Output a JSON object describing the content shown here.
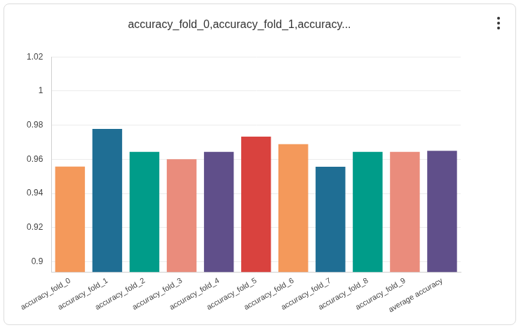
{
  "chart_data": {
    "type": "bar",
    "title": "accuracy_fold_0,accuracy_fold_1,accuracy...",
    "categories": [
      "accuracy_fold_0",
      "accuracy_fold_1",
      "accuracy_fold_2",
      "accuracy_fold_3",
      "accuracy_fold_4",
      "accuracy_fold_5",
      "accuracy_fold_6",
      "accuracy_fold_7",
      "accuracy_fold_8",
      "accuracy_fold_9",
      "average accuracy"
    ],
    "values": [
      0.9557,
      0.9778,
      0.9644,
      0.96,
      0.9644,
      0.9733,
      0.9689,
      0.9556,
      0.9644,
      0.9644,
      0.965
    ],
    "colors": [
      "#f4995b",
      "#1f6e94",
      "#009c89",
      "#ea8c7c",
      "#604f8a",
      "#d9423e",
      "#f4995b",
      "#1f6e94",
      "#009c89",
      "#ea8c7c",
      "#604f8a"
    ],
    "ylim": [
      0.894,
      1.02
    ],
    "yticks": [
      0.9,
      0.92,
      0.94,
      0.96,
      0.98,
      1,
      1.02
    ],
    "grid": true
  }
}
